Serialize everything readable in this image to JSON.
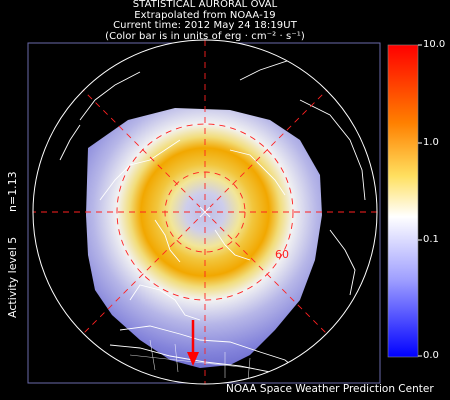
{
  "header": {
    "line1": "STATISTICAL AURORAL OVAL",
    "line2": "Extrapolated from NOAA-19",
    "line3": "Current time: 2012 May 24 18:19UT",
    "line4": "(Color bar is in units of erg · cm⁻² · s⁻¹)"
  },
  "side": {
    "n_label": "n=1.13",
    "activity_label": "Activity level 5"
  },
  "colorbar": {
    "ticks": [
      "10.0",
      "1.0",
      "0.1",
      "0.0"
    ],
    "colors": [
      "#ff0000",
      "#ff8800",
      "#ffee66",
      "#ffffff",
      "#9999ff",
      "#0000ff"
    ]
  },
  "map": {
    "lat_label": "60",
    "grid_color": "#ff0000",
    "arrow_color": "#ff0000"
  },
  "footer": "NOAA Space Weather Prediction Center"
}
